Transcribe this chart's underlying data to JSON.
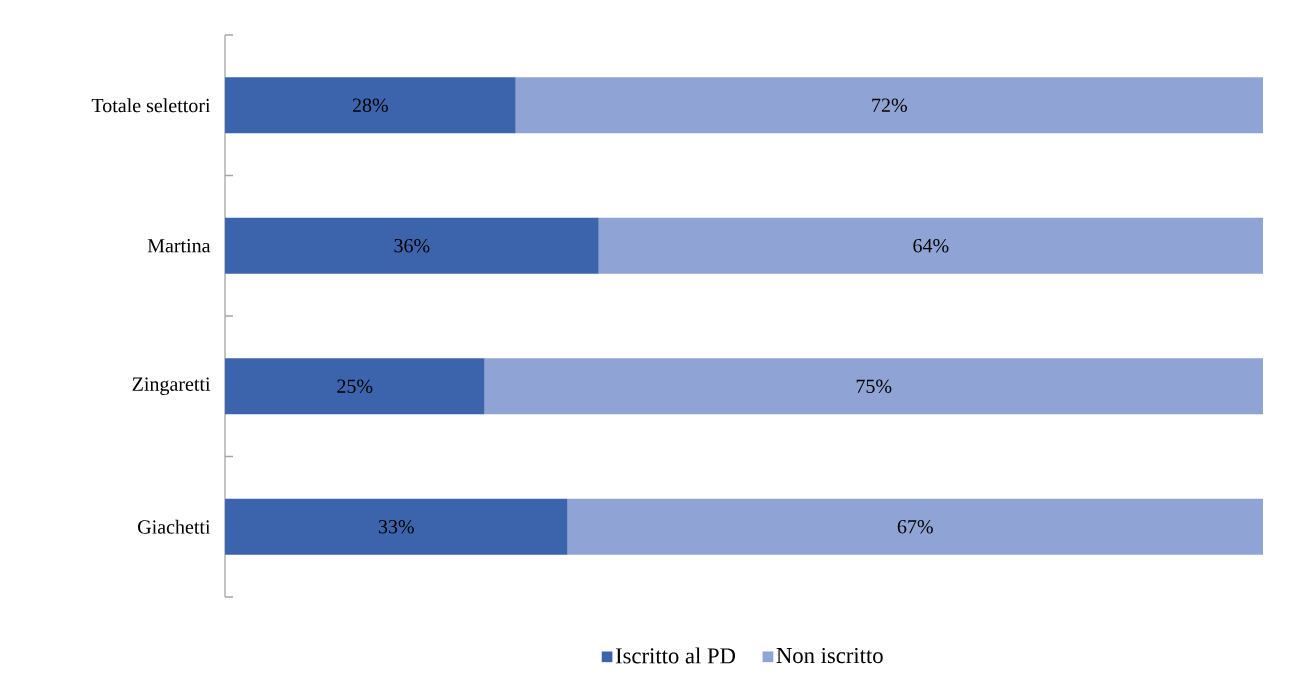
{
  "chart_data": {
    "type": "bar",
    "orientation": "horizontal",
    "stacked": true,
    "categories": [
      "Totale selettori",
      "Martina",
      "Zingaretti",
      "Giachetti"
    ],
    "series": [
      {
        "name": "Iscritto al PD",
        "color": "#3c64ad",
        "values": [
          28,
          36,
          25,
          33
        ],
        "value_labels": [
          "28%",
          "36%",
          "25%",
          "33%"
        ]
      },
      {
        "name": "Non iscritto",
        "color": "#8fa3d4",
        "values": [
          72,
          64,
          75,
          67
        ],
        "value_labels": [
          "72%",
          "64%",
          "75%",
          "67%"
        ]
      }
    ],
    "xlim": [
      0,
      100
    ],
    "tick_labels": "y",
    "legend": "bottom"
  }
}
